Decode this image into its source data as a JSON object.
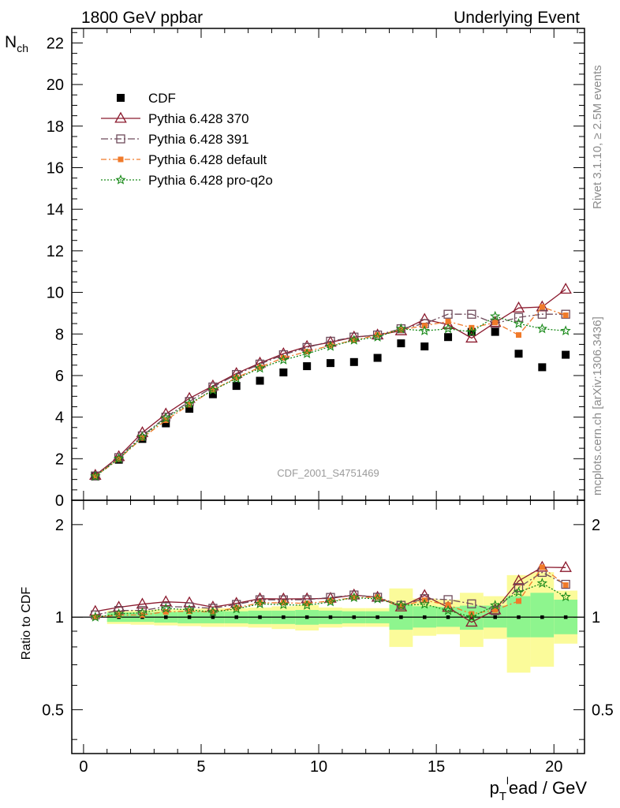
{
  "header": {
    "left_title": "1800 GeV ppbar",
    "right_title": "Underlying Event"
  },
  "side_labels": {
    "rivet": "Rivet 3.1.10, ≥ 2.5M events",
    "mcplots": "mcplots.cern.ch [arXiv:1306.3436]"
  },
  "analysis_label": "CDF_2001_S4751469",
  "axes": {
    "main_ylabel_main": "N",
    "main_ylabel_sub": "ch",
    "ratio_ylabel": "Ratio to CDF",
    "xlabel_p": "p",
    "xlabel_T": "T",
    "xlabel_l": "l",
    "xlabel_rest": "ead / GeV",
    "x_ticks": [
      "0",
      "5",
      "10",
      "15",
      "20"
    ],
    "main_y_ticks": [
      "0",
      "2",
      "4",
      "6",
      "8",
      "10",
      "12",
      "14",
      "16",
      "18",
      "20",
      "22"
    ],
    "ratio_y_ticks": [
      "0.5",
      "1",
      "2"
    ]
  },
  "colors": {
    "cdf": "#000000",
    "p370": "#8b1a2e",
    "p391": "#6e4a5a",
    "pdefault": "#f07a2a",
    "pq2o": "#1a8a1a",
    "band_inner": "#8ef58e",
    "band_outer": "#fbfb9a"
  },
  "chart_data": {
    "type": "scatter",
    "x": [
      0.5,
      1.5,
      2.5,
      3.5,
      4.5,
      5.5,
      6.5,
      7.5,
      8.5,
      9.5,
      10.5,
      11.5,
      12.5,
      13.5,
      14.5,
      15.5,
      16.5,
      17.5,
      18.5,
      19.5,
      20.5
    ],
    "xlim": [
      -0.5,
      21.3
    ],
    "ylim": [
      0,
      22.7
    ],
    "ratio_ylim": [
      0.36,
      2.4
    ],
    "ratio_scale": "log",
    "legend_position": "upper-left",
    "grid": false,
    "series": [
      {
        "name": "CDF",
        "values": [
          1.15,
          1.95,
          2.95,
          3.7,
          4.4,
          5.1,
          5.5,
          5.75,
          6.15,
          6.45,
          6.6,
          6.65,
          6.85,
          7.55,
          7.4,
          7.85,
          8.1,
          8.1,
          7.05,
          6.4,
          7.0
        ]
      },
      {
        "name": "Pythia 6.428 370",
        "values": [
          1.2,
          2.1,
          3.25,
          4.15,
          4.9,
          5.5,
          6.1,
          6.6,
          7.05,
          7.4,
          7.6,
          7.85,
          7.95,
          8.15,
          8.7,
          8.45,
          7.8,
          8.55,
          9.25,
          9.3,
          10.15
        ]
      },
      {
        "name": "Pythia 6.428 391",
        "values": [
          1.17,
          2.05,
          3.1,
          4.0,
          4.75,
          5.45,
          6.05,
          6.55,
          7.0,
          7.35,
          7.65,
          7.85,
          7.95,
          8.25,
          8.5,
          8.95,
          8.95,
          8.5,
          8.8,
          8.95,
          8.95
        ]
      },
      {
        "name": "Pythia 6.428 default",
        "values": [
          1.15,
          1.98,
          3.0,
          3.85,
          4.6,
          5.3,
          5.9,
          6.4,
          6.85,
          7.15,
          7.45,
          7.7,
          7.95,
          8.2,
          8.4,
          8.6,
          8.3,
          8.55,
          7.95,
          9.3,
          8.9
        ]
      },
      {
        "name": "Pythia 6.428 pro-q2o",
        "values": [
          1.15,
          2.0,
          3.05,
          3.95,
          4.65,
          5.3,
          5.85,
          6.35,
          6.75,
          7.05,
          7.4,
          7.7,
          7.85,
          8.25,
          8.15,
          8.25,
          8.1,
          8.85,
          8.5,
          8.25,
          8.15
        ]
      }
    ],
    "ratio_band_inner": [
      [
        0.985,
        1.015
      ],
      [
        0.965,
        1.035
      ],
      [
        0.965,
        1.035
      ],
      [
        0.96,
        1.04
      ],
      [
        0.955,
        1.045
      ],
      [
        0.955,
        1.045
      ],
      [
        0.955,
        1.045
      ],
      [
        0.95,
        1.05
      ],
      [
        0.95,
        1.05
      ],
      [
        0.945,
        1.055
      ],
      [
        0.95,
        1.05
      ],
      [
        0.955,
        1.045
      ],
      [
        0.955,
        1.045
      ],
      [
        0.91,
        1.1
      ],
      [
        0.925,
        1.085
      ],
      [
        0.93,
        1.08
      ],
      [
        0.91,
        1.09
      ],
      [
        0.925,
        1.09
      ],
      [
        0.86,
        1.17
      ],
      [
        0.86,
        1.2
      ],
      [
        0.88,
        1.14
      ]
    ],
    "ratio_band_outer": [
      [
        0.975,
        1.025
      ],
      [
        0.95,
        1.05
      ],
      [
        0.945,
        1.055
      ],
      [
        0.94,
        1.06
      ],
      [
        0.935,
        1.065
      ],
      [
        0.93,
        1.07
      ],
      [
        0.93,
        1.07
      ],
      [
        0.925,
        1.075
      ],
      [
        0.915,
        1.085
      ],
      [
        0.905,
        1.095
      ],
      [
        0.925,
        1.075
      ],
      [
        0.93,
        1.07
      ],
      [
        0.93,
        1.07
      ],
      [
        0.8,
        1.24
      ],
      [
        0.87,
        1.15
      ],
      [
        0.88,
        1.14
      ],
      [
        0.8,
        1.2
      ],
      [
        0.85,
        1.17
      ],
      [
        0.66,
        1.37
      ],
      [
        0.69,
        1.4
      ],
      [
        0.82,
        1.22
      ]
    ],
    "ratio_xlim_band": [
      1,
      21
    ]
  }
}
